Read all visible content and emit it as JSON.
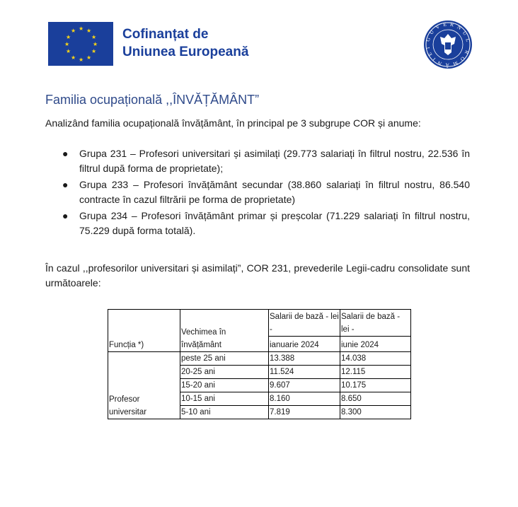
{
  "header": {
    "eu_logo_text": [
      "Cofinanțat de",
      "Uniunea Europeană"
    ],
    "gov_seal_text": "GUVERNUL ROMÂNIEI",
    "colors": {
      "eu_blue": "#1a3f9b",
      "eu_star": "#f7d417",
      "heading": "#2f4a8a"
    }
  },
  "title": "Familia ocupațională ,,ÎNVĂȚĂMÂNT”",
  "intro": "Analizând familia ocupațională învățământ, în principal pe 3 subgrupe COR și anume:",
  "bullets": [
    "Grupa 231 – Profesori universitari și asimilați (29.773 salariați în filtrul nostru, 22.536 în filtrul după forma de proprietate);",
    "Grupa 233 – Profesori învățământ secundar (38.860 salariați în filtrul nostru, 86.540 contracte în cazul filtrării pe forma de proprietate)",
    "Grupa 234 – Profesori învățământ primar și preșcolar (71.229 salariați în filtrul nostru,  75.229 după forma totală)."
  ],
  "paragraph": "În cazul ,,profesorilor universitari  și asimilați”, COR 231, prevederile Legii-cadru consolidate sunt următoarele:",
  "table": {
    "headers": {
      "functia": "Funcția *)",
      "vechimea": "Vechimea în învățământ",
      "col3_top": "Salarii de bază - lei -",
      "col3_bottom": "ianuarie 2024",
      "col4_top": "Salarii de bază - lei -",
      "col4_bottom": "iunie 2024"
    },
    "function_name": "Profesor universitar",
    "rows": [
      {
        "vechime": "peste 25 ani",
        "ian": "13.388",
        "iun": "14.038"
      },
      {
        "vechime": "20-25 ani",
        "ian": "11.524",
        "iun": "12.115"
      },
      {
        "vechime": "15-20 ani",
        "ian": "9.607",
        "iun": "10.175"
      },
      {
        "vechime": "10-15 ani",
        "ian": "8.160",
        "iun": "8.650"
      },
      {
        "vechime": "5-10 ani",
        "ian": "7.819",
        "iun": "8.300"
      }
    ]
  }
}
